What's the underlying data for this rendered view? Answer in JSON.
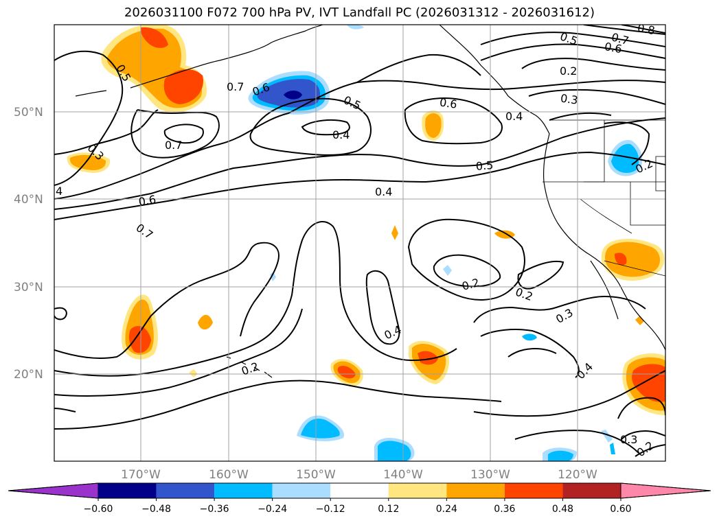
{
  "title": "2026031100 F072 700 hPa PV, IVT Landfall PC (2026031312 - 2026031612)",
  "lat_labels": [
    "50°N",
    "40°N",
    "30°N",
    "20°N"
  ],
  "lon_labels": [
    "170°W",
    "160°W",
    "150°W",
    "140°W",
    "130°W",
    "120°W"
  ],
  "colorbar": {
    "ticks": [
      "−0.60",
      "−0.48",
      "−0.36",
      "−0.24",
      "−0.12",
      "0.12",
      "0.24",
      "0.36",
      "0.48",
      "0.60"
    ],
    "colors": [
      "#9933cc",
      "#000088",
      "#3355cc",
      "#00bbff",
      "#aaddff",
      "#ffffff",
      "#ffe680",
      "#ffa500",
      "#ff4400",
      "#b22222",
      "#ff88aa"
    ]
  },
  "contour_labels": [
    "0.5",
    "0.7",
    "0.6",
    "0.5",
    "0.4",
    "0.7",
    "0.6",
    "0.5",
    "0.2",
    "0.3",
    "0.6",
    "0.7",
    "0.5",
    "0.4",
    "0.3",
    "4",
    "0.6",
    "0.7",
    "0.2",
    "0.2",
    "0.3",
    "0.4",
    "0.4",
    "0.2",
    "0.3",
    "0.2",
    "0.8",
    "0.4",
    "0.2"
  ]
}
